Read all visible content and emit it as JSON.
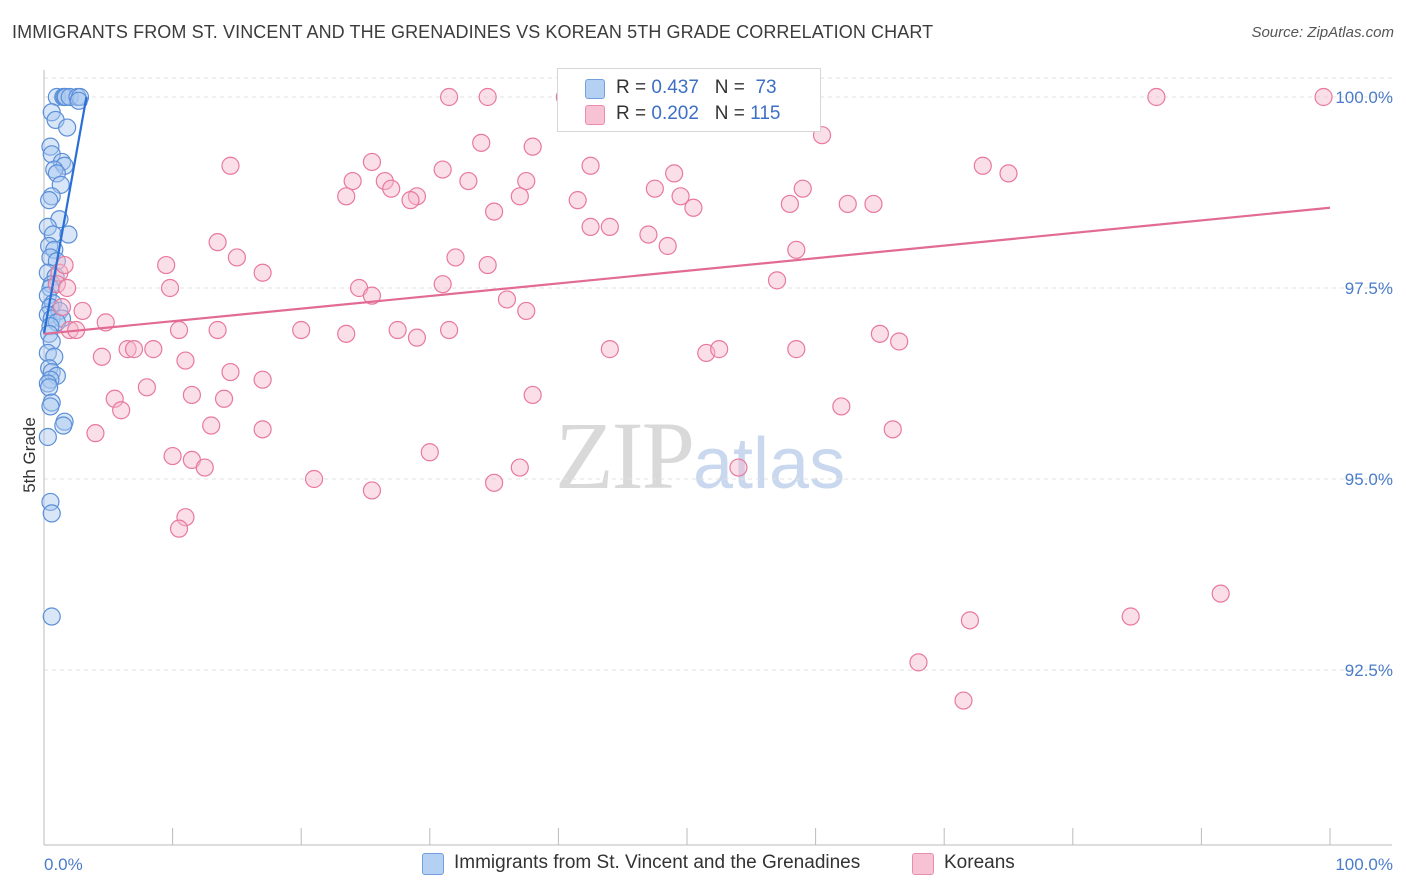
{
  "header": {
    "title": "IMMIGRANTS FROM ST. VINCENT AND THE GRENADINES VS KOREAN 5TH GRADE CORRELATION CHART",
    "source": "Source: ZipAtlas.com"
  },
  "watermark": {
    "zip": "ZIP",
    "atlas": "atlas"
  },
  "legend": {
    "r_label": "R =",
    "n_label": "N =",
    "series": [
      {
        "name": "Immigrants from St. Vincent and the Grenadines",
        "r": "0.437",
        "n": "73",
        "fill": "#a8c8f0",
        "stroke": "#5b8fd8"
      },
      {
        "name": "Koreans",
        "r": "0.202",
        "n": "115",
        "fill": "#f6b8cc",
        "stroke": "#e8799c"
      }
    ]
  },
  "colors": {
    "blue_line": "#2a6fd6",
    "pink_line": "#e26b95",
    "tick_text": "#4a7cc9",
    "grid": "#e2e2e2"
  },
  "chart_data": {
    "type": "scatter",
    "title": "IMMIGRANTS FROM ST. VINCENT AND THE GRENADINES VS KOREAN 5TH GRADE CORRELATION CHART",
    "xlabel": "",
    "ylabel": "5th Grade",
    "xlim": [
      0,
      100
    ],
    "ylim": [
      90.0,
      100.3
    ],
    "x_tick_labels": [
      "0.0%",
      "100.0%"
    ],
    "y_ticks": [
      {
        "value": 100.0,
        "label": "100.0%"
      },
      {
        "value": 97.5,
        "label": "97.5%"
      },
      {
        "value": 95.0,
        "label": "95.0%"
      },
      {
        "value": 92.5,
        "label": "92.5%"
      }
    ],
    "series": [
      {
        "name": "Immigrants from St. Vincent and the Grenadines",
        "trend": {
          "x1": 0.0,
          "y1": 96.9,
          "x2": 3.3,
          "y2": 100.0
        },
        "points": [
          [
            1.0,
            100.0
          ],
          [
            1.5,
            100.0
          ],
          [
            1.6,
            100.0
          ],
          [
            1.7,
            100.0
          ],
          [
            2.0,
            100.0
          ],
          [
            2.6,
            100.0
          ],
          [
            2.8,
            100.0
          ],
          [
            2.7,
            99.95
          ],
          [
            0.6,
            99.8
          ],
          [
            0.9,
            99.7
          ],
          [
            1.8,
            99.6
          ],
          [
            0.5,
            99.35
          ],
          [
            0.6,
            99.25
          ],
          [
            1.4,
            99.15
          ],
          [
            1.6,
            99.1
          ],
          [
            0.8,
            99.05
          ],
          [
            1.0,
            99.0
          ],
          [
            1.3,
            98.85
          ],
          [
            0.6,
            98.7
          ],
          [
            0.4,
            98.65
          ],
          [
            1.2,
            98.4
          ],
          [
            0.3,
            98.3
          ],
          [
            0.7,
            98.2
          ],
          [
            1.9,
            98.2
          ],
          [
            0.4,
            98.05
          ],
          [
            0.8,
            98.0
          ],
          [
            0.5,
            97.9
          ],
          [
            1.0,
            97.85
          ],
          [
            0.3,
            97.7
          ],
          [
            0.9,
            97.65
          ],
          [
            0.6,
            97.55
          ],
          [
            0.5,
            97.5
          ],
          [
            0.3,
            97.4
          ],
          [
            0.7,
            97.3
          ],
          [
            0.5,
            97.25
          ],
          [
            1.2,
            97.2
          ],
          [
            0.3,
            97.15
          ],
          [
            0.6,
            97.1
          ],
          [
            1.4,
            97.1
          ],
          [
            1.0,
            97.05
          ],
          [
            0.5,
            97.0
          ],
          [
            0.4,
            96.9
          ],
          [
            0.6,
            96.8
          ],
          [
            0.3,
            96.65
          ],
          [
            0.8,
            96.6
          ],
          [
            0.4,
            96.45
          ],
          [
            0.6,
            96.4
          ],
          [
            1.0,
            96.35
          ],
          [
            0.5,
            96.3
          ],
          [
            0.3,
            96.25
          ],
          [
            0.4,
            96.2
          ],
          [
            0.6,
            96.0
          ],
          [
            0.5,
            95.95
          ],
          [
            1.6,
            95.75
          ],
          [
            1.5,
            95.7
          ],
          [
            0.3,
            95.55
          ],
          [
            0.5,
            94.7
          ],
          [
            0.6,
            94.55
          ],
          [
            0.6,
            93.2
          ]
        ]
      },
      {
        "name": "Koreans",
        "trend": {
          "x1": 0.0,
          "y1": 96.9,
          "x2": 100.0,
          "y2": 98.55
        },
        "points": [
          [
            31.5,
            100.0
          ],
          [
            34.5,
            100.0
          ],
          [
            40.5,
            100.0
          ],
          [
            42.0,
            100.0
          ],
          [
            43.5,
            100.0
          ],
          [
            86.5,
            100.0
          ],
          [
            99.5,
            100.0
          ],
          [
            60.5,
            99.5
          ],
          [
            34.0,
            99.4
          ],
          [
            38.0,
            99.35
          ],
          [
            14.5,
            99.1
          ],
          [
            25.5,
            99.15
          ],
          [
            31.0,
            99.05
          ],
          [
            42.5,
            99.1
          ],
          [
            49.0,
            99.0
          ],
          [
            73.0,
            99.1
          ],
          [
            75.0,
            99.0
          ],
          [
            24.0,
            98.9
          ],
          [
            26.5,
            98.9
          ],
          [
            33.0,
            98.9
          ],
          [
            37.5,
            98.9
          ],
          [
            27.0,
            98.8
          ],
          [
            29.0,
            98.7
          ],
          [
            47.5,
            98.8
          ],
          [
            59.0,
            98.8
          ],
          [
            23.5,
            98.7
          ],
          [
            28.5,
            98.65
          ],
          [
            37.0,
            98.7
          ],
          [
            41.5,
            98.65
          ],
          [
            49.5,
            98.7
          ],
          [
            62.5,
            98.6
          ],
          [
            64.5,
            98.6
          ],
          [
            50.5,
            98.55
          ],
          [
            35.0,
            98.5
          ],
          [
            58.0,
            98.6
          ],
          [
            42.5,
            98.3
          ],
          [
            44.0,
            98.3
          ],
          [
            47.0,
            98.2
          ],
          [
            48.5,
            98.05
          ],
          [
            58.5,
            98.0
          ],
          [
            32.0,
            97.9
          ],
          [
            34.5,
            97.8
          ],
          [
            13.5,
            98.1
          ],
          [
            15.0,
            97.9
          ],
          [
            9.5,
            97.8
          ],
          [
            17.0,
            97.7
          ],
          [
            1.2,
            97.7
          ],
          [
            1.6,
            97.8
          ],
          [
            1.0,
            97.55
          ],
          [
            1.8,
            97.5
          ],
          [
            9.8,
            97.5
          ],
          [
            24.5,
            97.5
          ],
          [
            25.5,
            97.4
          ],
          [
            31.0,
            97.55
          ],
          [
            36.0,
            97.35
          ],
          [
            57.0,
            97.6
          ],
          [
            37.5,
            97.2
          ],
          [
            1.4,
            97.25
          ],
          [
            3.0,
            97.2
          ],
          [
            4.8,
            97.05
          ],
          [
            2.0,
            96.95
          ],
          [
            10.5,
            96.95
          ],
          [
            13.5,
            96.95
          ],
          [
            20.0,
            96.95
          ],
          [
            23.5,
            96.9
          ],
          [
            27.5,
            96.95
          ],
          [
            29.0,
            96.85
          ],
          [
            31.5,
            96.95
          ],
          [
            44.0,
            96.7
          ],
          [
            51.5,
            96.65
          ],
          [
            52.5,
            96.7
          ],
          [
            58.5,
            96.7
          ],
          [
            65.0,
            96.9
          ],
          [
            66.5,
            96.8
          ],
          [
            4.5,
            96.6
          ],
          [
            6.5,
            96.7
          ],
          [
            7.0,
            96.7
          ],
          [
            8.5,
            96.7
          ],
          [
            11.0,
            96.55
          ],
          [
            14.5,
            96.4
          ],
          [
            5.5,
            96.05
          ],
          [
            8.0,
            96.2
          ],
          [
            11.5,
            96.1
          ],
          [
            14.0,
            96.05
          ],
          [
            17.0,
            96.3
          ],
          [
            38.0,
            96.1
          ],
          [
            6.0,
            95.9
          ],
          [
            62.0,
            95.95
          ],
          [
            4.0,
            95.6
          ],
          [
            13.0,
            95.7
          ],
          [
            17.0,
            95.65
          ],
          [
            30.0,
            95.35
          ],
          [
            10.0,
            95.3
          ],
          [
            11.5,
            95.25
          ],
          [
            12.5,
            95.15
          ],
          [
            37.0,
            95.15
          ],
          [
            21.0,
            95.0
          ],
          [
            35.0,
            94.95
          ],
          [
            25.5,
            94.85
          ],
          [
            11.0,
            94.5
          ],
          [
            10.5,
            94.35
          ],
          [
            91.5,
            93.5
          ],
          [
            68.0,
            92.6
          ],
          [
            71.5,
            92.1
          ],
          [
            72.0,
            93.15
          ],
          [
            84.5,
            93.2
          ],
          [
            54.0,
            95.15
          ],
          [
            66.0,
            95.65
          ],
          [
            2.5,
            96.95
          ]
        ]
      }
    ]
  }
}
